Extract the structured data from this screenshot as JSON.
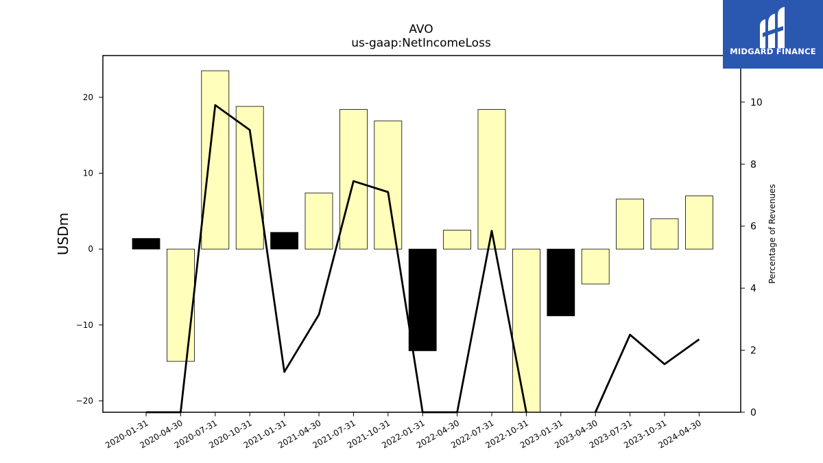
{
  "chart_data": {
    "type": "bar",
    "title": "AVO",
    "subtitle": "us-gaap:NetIncomeLoss",
    "ylabel": "USDm",
    "y2label": "Percentage of Revenues",
    "ylim": [
      -21.5,
      25.5
    ],
    "y2lim": [
      0,
      11.5
    ],
    "yticks": [
      -20,
      -10,
      0,
      10,
      20
    ],
    "y2ticks": [
      0,
      2,
      4,
      6,
      8,
      10
    ],
    "categories": [
      "2020-01-31",
      "2020-04-30",
      "2020-07-31",
      "2020-10-31",
      "2021-01-31",
      "2021-04-30",
      "2021-07-31",
      "2021-10-31",
      "2022-01-31",
      "2022-04-30",
      "2022-07-31",
      "2022-10-31",
      "2023-01-31",
      "2023-04-30",
      "2023-07-31",
      "2023-10-31",
      "2024-04-30"
    ],
    "series": [
      {
        "kind": "bar",
        "values": [
          1.4,
          -14.8,
          23.5,
          18.8,
          2.2,
          7.4,
          18.4,
          16.9,
          -13.4,
          2.5,
          18.4,
          -24.0,
          -8.8,
          -4.6,
          6.6,
          4.0,
          7.0
        ],
        "colors": [
          "#000000",
          "#ffffbb",
          "#ffffbb",
          "#ffffbb",
          "#000000",
          "#ffffbb",
          "#ffffbb",
          "#ffffbb",
          "#000000",
          "#ffffbb",
          "#ffffbb",
          "#ffffbb",
          "#000000",
          "#ffffbb",
          "#ffffbb",
          "#ffffbb",
          "#ffffbb"
        ]
      },
      {
        "kind": "line",
        "axis": "right",
        "values": [
          0.0,
          0.0,
          9.9,
          9.1,
          1.3,
          3.15,
          7.45,
          7.1,
          -0.5,
          -0.9,
          5.85,
          -2.0,
          null,
          -0.5,
          2.5,
          1.55,
          2.35
        ]
      }
    ],
    "grid": false
  },
  "logo": {
    "text": "MIDGARD FINANCE",
    "color": "#2a58b0"
  }
}
